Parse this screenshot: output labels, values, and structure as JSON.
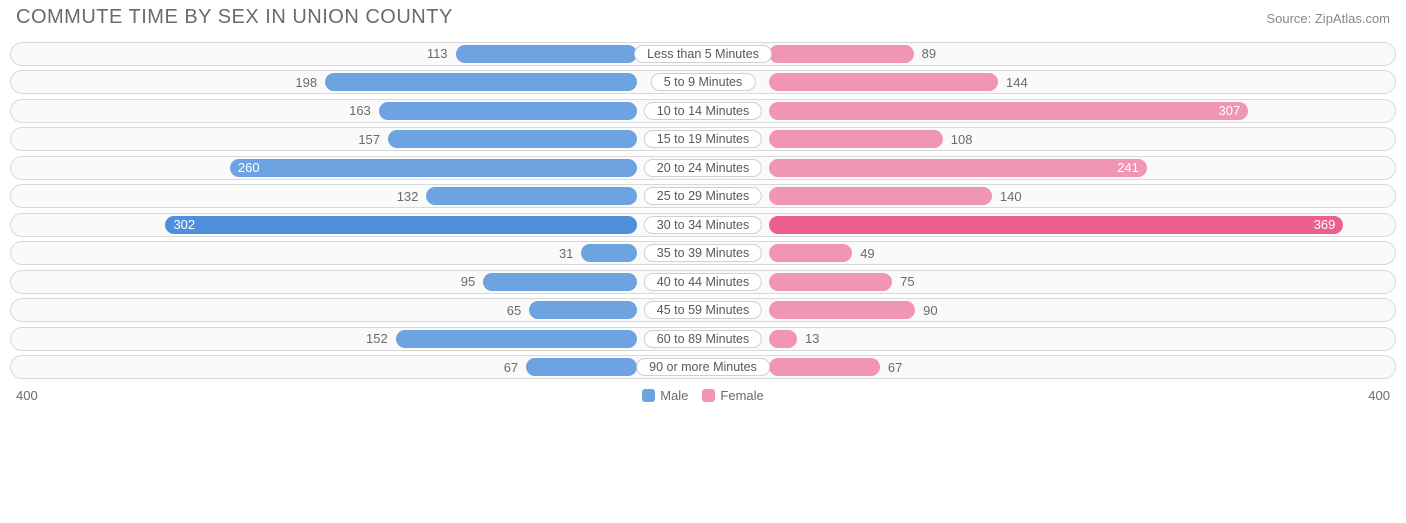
{
  "title": "COMMUTE TIME BY SEX IN UNION COUNTY",
  "source": "Source: ZipAtlas.com",
  "chart": {
    "type": "diverging-bar",
    "axis_max": 400,
    "axis_label_left": "400",
    "axis_label_right": "400",
    "pill_halfwidth": 74,
    "value_inside_threshold": 200,
    "track_border_color": "#d9d9d9",
    "track_bg_color": "#fafafa",
    "text_color": "#6b6b6b",
    "series": [
      {
        "key": "male",
        "label": "Male",
        "color": "#6da3e0",
        "highlight": "#4f8fdc"
      },
      {
        "key": "female",
        "label": "Female",
        "color": "#f095b4",
        "highlight": "#ec5e8d"
      }
    ],
    "rows": [
      {
        "category": "Less than 5 Minutes",
        "male": 113,
        "female": 89
      },
      {
        "category": "5 to 9 Minutes",
        "male": 198,
        "female": 144
      },
      {
        "category": "10 to 14 Minutes",
        "male": 163,
        "female": 307
      },
      {
        "category": "15 to 19 Minutes",
        "male": 157,
        "female": 108
      },
      {
        "category": "20 to 24 Minutes",
        "male": 260,
        "female": 241
      },
      {
        "category": "25 to 29 Minutes",
        "male": 132,
        "female": 140
      },
      {
        "category": "30 to 34 Minutes",
        "male": 302,
        "female": 369
      },
      {
        "category": "35 to 39 Minutes",
        "male": 31,
        "female": 49
      },
      {
        "category": "40 to 44 Minutes",
        "male": 95,
        "female": 75
      },
      {
        "category": "45 to 59 Minutes",
        "male": 65,
        "female": 90
      },
      {
        "category": "60 to 89 Minutes",
        "male": 152,
        "female": 13
      },
      {
        "category": "90 or more Minutes",
        "male": 67,
        "female": 67
      }
    ]
  }
}
